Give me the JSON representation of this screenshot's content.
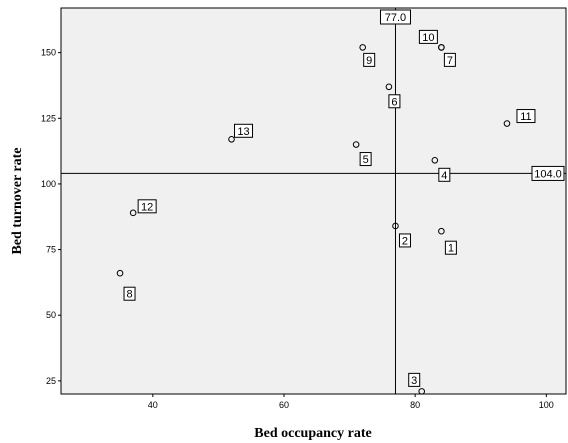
{
  "chart_data": {
    "type": "scatter",
    "title": "",
    "xlabel": "Bed occupancy rate",
    "ylabel": "Bed turnover rate",
    "xlim": [
      26,
      103
    ],
    "ylim": [
      20,
      167
    ],
    "x_ticks": [
      40,
      60,
      80,
      100
    ],
    "y_ticks": [
      25,
      50,
      75,
      100,
      125,
      150
    ],
    "x_tick_labels": [
      "40",
      "60",
      "80",
      "100"
    ],
    "y_tick_labels": [
      "25",
      "50",
      "75",
      "100",
      "125",
      "150"
    ],
    "grid": false,
    "legend": "none",
    "colors": {
      "plot_background": "#f0f0f0",
      "marker_stroke": "#000000",
      "reference_line": "#000000"
    },
    "reference_lines": {
      "vertical": {
        "x": 77.0,
        "label": "77.0"
      },
      "horizontal": {
        "y": 104.0,
        "label": "104.0"
      }
    },
    "points": [
      {
        "label": "1",
        "x": 84,
        "y": 82
      },
      {
        "label": "2",
        "x": 77,
        "y": 84
      },
      {
        "label": "3",
        "x": 81,
        "y": 21
      },
      {
        "label": "4",
        "x": 83,
        "y": 109
      },
      {
        "label": "5",
        "x": 71,
        "y": 115
      },
      {
        "label": "6",
        "x": 76,
        "y": 137
      },
      {
        "label": "7",
        "x": 84,
        "y": 152
      },
      {
        "label": "8",
        "x": 35,
        "y": 66
      },
      {
        "label": "9",
        "x": 72,
        "y": 152
      },
      {
        "label": "10",
        "x": 84,
        "y": 152
      },
      {
        "label": "11",
        "x": 94,
        "y": 123
      },
      {
        "label": "12",
        "x": 37,
        "y": 89
      },
      {
        "label": "13",
        "x": 52,
        "y": 117
      }
    ]
  }
}
